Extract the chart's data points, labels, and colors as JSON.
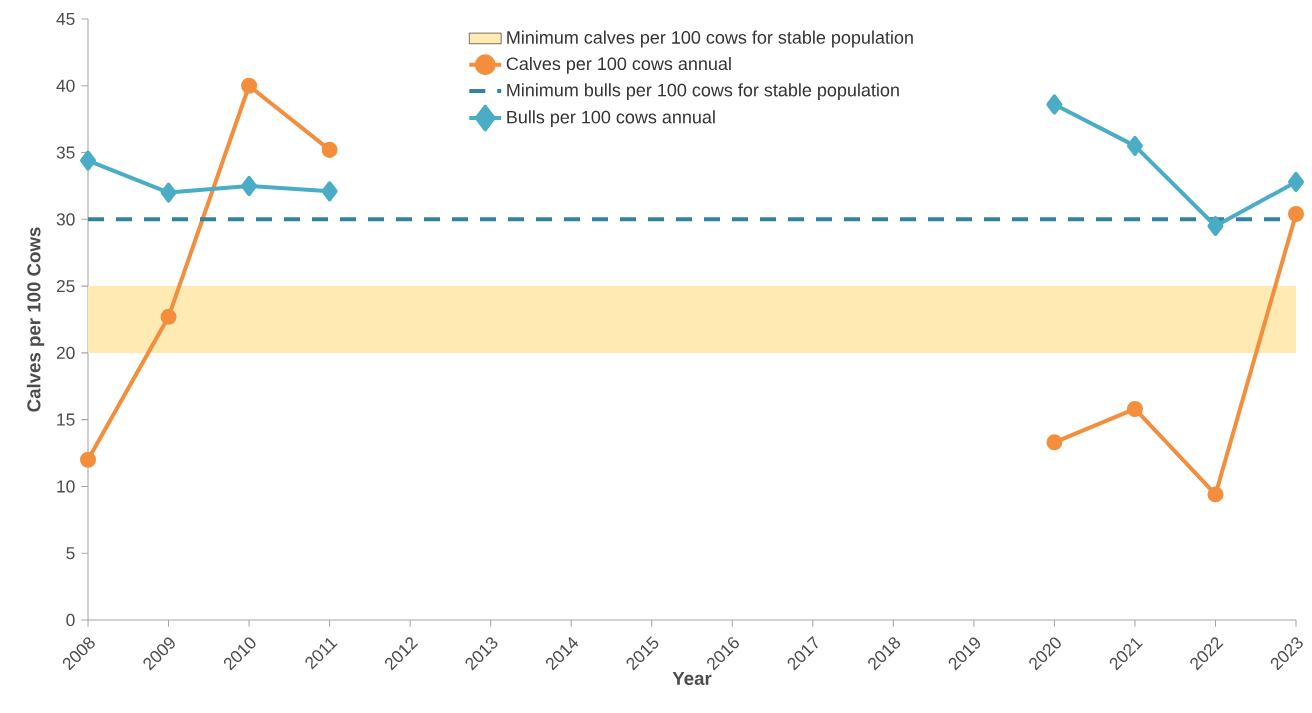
{
  "chart_data": {
    "type": "line",
    "xlabel": "Year",
    "ylabel": "Calves per 100 Cows",
    "categories": [
      "2008",
      "2009",
      "2010",
      "2011",
      "2012",
      "2013",
      "2014",
      "2015",
      "2016",
      "2017",
      "2018",
      "2019",
      "2020",
      "2021",
      "2022",
      "2023"
    ],
    "ylim": [
      0,
      45
    ],
    "yticks": [
      0,
      5,
      10,
      15,
      20,
      25,
      30,
      35,
      40,
      45
    ],
    "legend": "top",
    "series": [
      {
        "name": "Calves per 100 cows annual",
        "color": "#f28e3c",
        "marker": "circle",
        "values": [
          12.0,
          22.7,
          40.0,
          35.2,
          null,
          null,
          null,
          null,
          null,
          null,
          null,
          null,
          13.3,
          15.8,
          9.4,
          30.4
        ]
      },
      {
        "name": "Bulls per 100 cows annual",
        "color": "#4bacc6",
        "marker": "diamond",
        "values": [
          34.4,
          32.0,
          32.5,
          32.1,
          null,
          null,
          null,
          null,
          null,
          null,
          null,
          null,
          38.6,
          35.5,
          29.5,
          32.8
        ]
      }
    ],
    "bands": [
      {
        "axis": "y",
        "from": 20,
        "to": 25,
        "label": "Minimum calves per 100 cows for stable population",
        "color": "#ffeab4"
      }
    ],
    "ref_lines": [
      {
        "axis": "y",
        "value": 30,
        "label": "Minimum bulls per 100 cows for stable population",
        "color": "#31849b",
        "line_style": "dashed"
      }
    ]
  }
}
